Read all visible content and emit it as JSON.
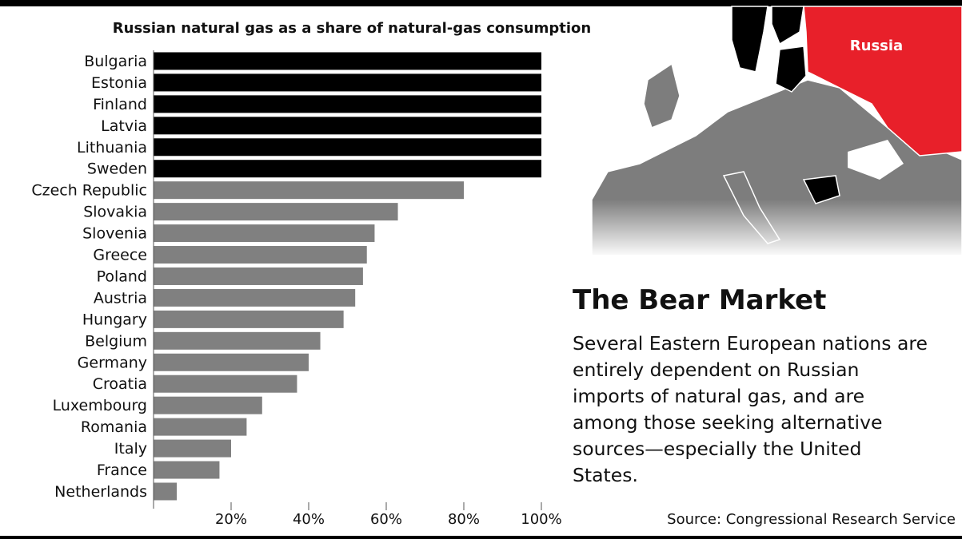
{
  "chart_data": {
    "type": "bar",
    "orientation": "horizontal",
    "title": "Russian natural gas as a share of natural-gas consumption",
    "categories": [
      "Bulgaria",
      "Estonia",
      "Finland",
      "Latvia",
      "Lithuania",
      "Sweden",
      "Czech Republic",
      "Slovakia",
      "Slovenia",
      "Greece",
      "Poland",
      "Austria",
      "Hungary",
      "Belgium",
      "Germany",
      "Croatia",
      "Luxembourg",
      "Romania",
      "Italy",
      "France",
      "Netherlands"
    ],
    "values": [
      100,
      100,
      100,
      100,
      100,
      100,
      80,
      63,
      57,
      55,
      54,
      52,
      49,
      43,
      40,
      37,
      28,
      24,
      20,
      17,
      6
    ],
    "colors": [
      "#000000",
      "#000000",
      "#000000",
      "#000000",
      "#000000",
      "#000000",
      "#808080",
      "#808080",
      "#808080",
      "#808080",
      "#808080",
      "#808080",
      "#808080",
      "#808080",
      "#808080",
      "#808080",
      "#808080",
      "#808080",
      "#808080",
      "#808080",
      "#808080"
    ],
    "xlim": [
      0,
      100
    ],
    "xticks": [
      {
        "value": 20,
        "label": "20%"
      },
      {
        "value": 40,
        "label": "40%"
      },
      {
        "value": 60,
        "label": "60%"
      },
      {
        "value": 80,
        "label": "80%"
      },
      {
        "value": 100,
        "label": "100%"
      }
    ]
  },
  "map": {
    "label": "Russia"
  },
  "article": {
    "heading": "The Bear Market",
    "body": "Several Eastern European nations are entirely dependent on Russian imports of natural gas, and are among those seeking alternative sources—especially the United States.",
    "source": "Source: Congressional Research Service"
  }
}
